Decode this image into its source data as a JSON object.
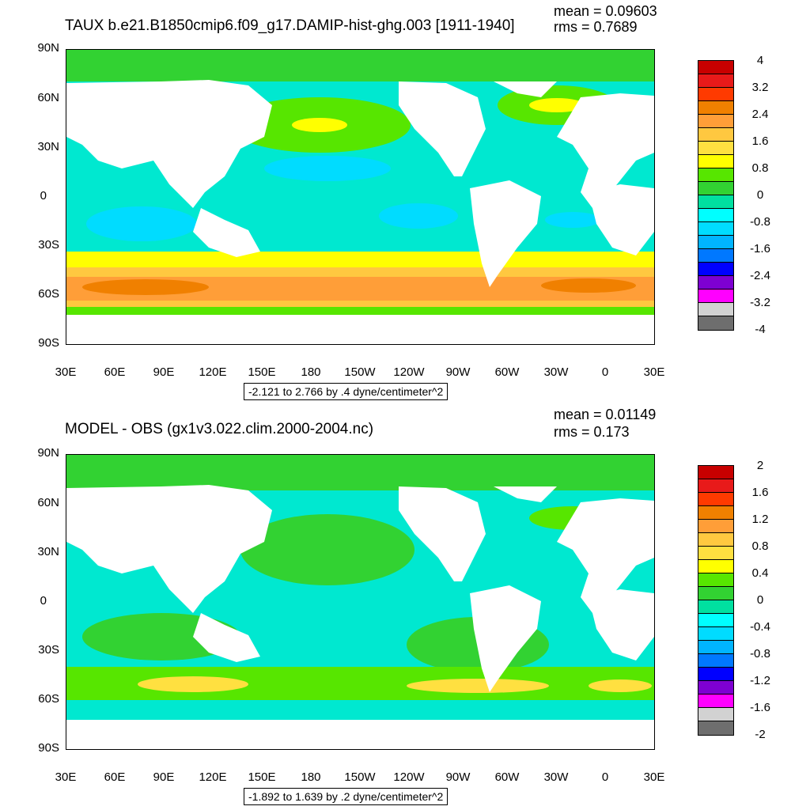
{
  "panels": [
    {
      "title": "TAUX b.e21.B1850cmip6.f09_g17.DAMIP-hist-ghg.003 [1911-1940]",
      "mean": "mean = 0.09603",
      "rms": "rms = 0.7689",
      "info": "-2.121 to 2.766 by .4 dyne/centimeter^2",
      "colorbar_labels": [
        "4",
        "3.2",
        "2.4",
        "1.6",
        "0.8",
        "0",
        "-0.8",
        "-1.6",
        "-2.4",
        "-3.2",
        "-4"
      ]
    },
    {
      "title": "MODEL - OBS (gx1v3.022.clim.2000-2004.nc)",
      "mean": "mean = 0.01149",
      "rms": "rms = 0.173",
      "info": "-1.892 to 1.639 by .2 dyne/centimeter^2",
      "colorbar_labels": [
        "2",
        "1.6",
        "1.2",
        "0.8",
        "0.4",
        "0",
        "-0.4",
        "-0.8",
        "-1.2",
        "-1.6",
        "-2"
      ]
    }
  ],
  "lat_labels": [
    "90N",
    "60N",
    "30N",
    "0",
    "30S",
    "60S",
    "90S"
  ],
  "lon_labels": [
    "30E",
    "60E",
    "90E",
    "120E",
    "150E",
    "180",
    "150W",
    "120W",
    "90W",
    "60W",
    "30W",
    "0",
    "30E"
  ],
  "colorbar_colors": [
    "#c80000",
    "#e81a1a",
    "#ff3a00",
    "#f08000",
    "#ff9e38",
    "#ffc840",
    "#ffe040",
    "#ffff00",
    "#57e600",
    "#32d232",
    "#00e0a0",
    "#00ffff",
    "#00dcff",
    "#00b4ff",
    "#0078ff",
    "#0000ff",
    "#7e00d2",
    "#ff00ff",
    "#d2d2d2",
    "#6e6e6e"
  ]
}
